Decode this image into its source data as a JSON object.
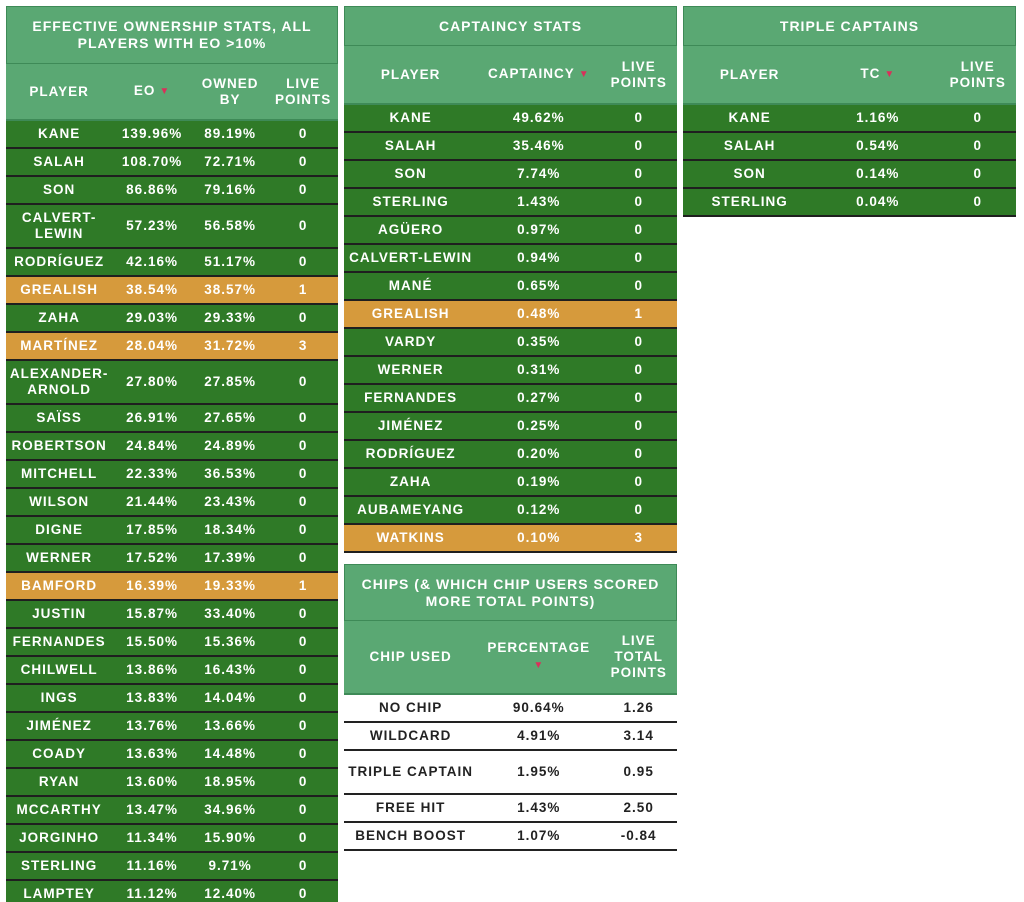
{
  "colors": {
    "header": "#5aa873",
    "row": "#2f7a27",
    "highlight": "#d69a3c",
    "sort_arrow": "#d9305a"
  },
  "eo_table": {
    "title": "EFFECTIVE OWNERSHIP STATS, ALL PLAYERS WITH EO >10%",
    "headers": [
      "PLAYER",
      "EO",
      "OWNED BY",
      "LIVE POINTS"
    ],
    "sorted_column": "EO",
    "rows": [
      {
        "player": "KANE",
        "eo": "139.96%",
        "owned": "89.19%",
        "points": "0",
        "highlight": false
      },
      {
        "player": "SALAH",
        "eo": "108.70%",
        "owned": "72.71%",
        "points": "0",
        "highlight": false
      },
      {
        "player": "SON",
        "eo": "86.86%",
        "owned": "79.16%",
        "points": "0",
        "highlight": false
      },
      {
        "player": "CALVERT-LEWIN",
        "eo": "57.23%",
        "owned": "56.58%",
        "points": "0",
        "highlight": false,
        "tall": true
      },
      {
        "player": "RODRÍGUEZ",
        "eo": "42.16%",
        "owned": "51.17%",
        "points": "0",
        "highlight": false
      },
      {
        "player": "GREALISH",
        "eo": "38.54%",
        "owned": "38.57%",
        "points": "1",
        "highlight": true
      },
      {
        "player": "ZAHA",
        "eo": "29.03%",
        "owned": "29.33%",
        "points": "0",
        "highlight": false
      },
      {
        "player": "MARTÍNEZ",
        "eo": "28.04%",
        "owned": "31.72%",
        "points": "3",
        "highlight": true
      },
      {
        "player": "ALEXANDER-ARNOLD",
        "eo": "27.80%",
        "owned": "27.85%",
        "points": "0",
        "highlight": false,
        "tall": true
      },
      {
        "player": "SAÏSS",
        "eo": "26.91%",
        "owned": "27.65%",
        "points": "0",
        "highlight": false
      },
      {
        "player": "ROBERTSON",
        "eo": "24.84%",
        "owned": "24.89%",
        "points": "0",
        "highlight": false
      },
      {
        "player": "MITCHELL",
        "eo": "22.33%",
        "owned": "36.53%",
        "points": "0",
        "highlight": false
      },
      {
        "player": "WILSON",
        "eo": "21.44%",
        "owned": "23.43%",
        "points": "0",
        "highlight": false
      },
      {
        "player": "DIGNE",
        "eo": "17.85%",
        "owned": "18.34%",
        "points": "0",
        "highlight": false
      },
      {
        "player": "WERNER",
        "eo": "17.52%",
        "owned": "17.39%",
        "points": "0",
        "highlight": false
      },
      {
        "player": "BAMFORD",
        "eo": "16.39%",
        "owned": "19.33%",
        "points": "1",
        "highlight": true
      },
      {
        "player": "JUSTIN",
        "eo": "15.87%",
        "owned": "33.40%",
        "points": "0",
        "highlight": false
      },
      {
        "player": "FERNANDES",
        "eo": "15.50%",
        "owned": "15.36%",
        "points": "0",
        "highlight": false
      },
      {
        "player": "CHILWELL",
        "eo": "13.86%",
        "owned": "16.43%",
        "points": "0",
        "highlight": false
      },
      {
        "player": "INGS",
        "eo": "13.83%",
        "owned": "14.04%",
        "points": "0",
        "highlight": false
      },
      {
        "player": "JIMÉNEZ",
        "eo": "13.76%",
        "owned": "13.66%",
        "points": "0",
        "highlight": false
      },
      {
        "player": "COADY",
        "eo": "13.63%",
        "owned": "14.48%",
        "points": "0",
        "highlight": false
      },
      {
        "player": "RYAN",
        "eo": "13.60%",
        "owned": "18.95%",
        "points": "0",
        "highlight": false
      },
      {
        "player": "MCCARTHY",
        "eo": "13.47%",
        "owned": "34.96%",
        "points": "0",
        "highlight": false
      },
      {
        "player": "JORGINHO",
        "eo": "11.34%",
        "owned": "15.90%",
        "points": "0",
        "highlight": false
      },
      {
        "player": "STERLING",
        "eo": "11.16%",
        "owned": "9.71%",
        "points": "0",
        "highlight": false
      },
      {
        "player": "LAMPTEY",
        "eo": "11.12%",
        "owned": "12.40%",
        "points": "0",
        "highlight": false
      }
    ]
  },
  "captaincy_table": {
    "title": "CAPTAINCY STATS",
    "headers": [
      "PLAYER",
      "CAPTAINCY",
      "LIVE POINTS"
    ],
    "sorted_column": "CAPTAINCY",
    "rows": [
      {
        "player": "KANE",
        "pct": "49.62%",
        "points": "0",
        "highlight": false
      },
      {
        "player": "SALAH",
        "pct": "35.46%",
        "points": "0",
        "highlight": false
      },
      {
        "player": "SON",
        "pct": "7.74%",
        "points": "0",
        "highlight": false
      },
      {
        "player": "STERLING",
        "pct": "1.43%",
        "points": "0",
        "highlight": false
      },
      {
        "player": "AGÜERO",
        "pct": "0.97%",
        "points": "0",
        "highlight": false
      },
      {
        "player": "CALVERT-LEWIN",
        "pct": "0.94%",
        "points": "0",
        "highlight": false
      },
      {
        "player": "MANÉ",
        "pct": "0.65%",
        "points": "0",
        "highlight": false
      },
      {
        "player": "GREALISH",
        "pct": "0.48%",
        "points": "1",
        "highlight": true
      },
      {
        "player": "VARDY",
        "pct": "0.35%",
        "points": "0",
        "highlight": false
      },
      {
        "player": "WERNER",
        "pct": "0.31%",
        "points": "0",
        "highlight": false
      },
      {
        "player": "FERNANDES",
        "pct": "0.27%",
        "points": "0",
        "highlight": false
      },
      {
        "player": "JIMÉNEZ",
        "pct": "0.25%",
        "points": "0",
        "highlight": false
      },
      {
        "player": "RODRÍGUEZ",
        "pct": "0.20%",
        "points": "0",
        "highlight": false
      },
      {
        "player": "ZAHA",
        "pct": "0.19%",
        "points": "0",
        "highlight": false
      },
      {
        "player": "AUBAMEYANG",
        "pct": "0.12%",
        "points": "0",
        "highlight": false
      },
      {
        "player": "WATKINS",
        "pct": "0.10%",
        "points": "3",
        "highlight": true
      }
    ]
  },
  "triple_captain_table": {
    "title": "TRIPLE CAPTAINS",
    "headers": [
      "PLAYER",
      "TC",
      "LIVE POINTS"
    ],
    "sorted_column": "TC",
    "rows": [
      {
        "player": "KANE",
        "pct": "1.16%",
        "points": "0",
        "highlight": false
      },
      {
        "player": "SALAH",
        "pct": "0.54%",
        "points": "0",
        "highlight": false
      },
      {
        "player": "SON",
        "pct": "0.14%",
        "points": "0",
        "highlight": false
      },
      {
        "player": "STERLING",
        "pct": "0.04%",
        "points": "0",
        "highlight": false
      }
    ]
  },
  "chips_table": {
    "title": "CHIPS (& WHICH CHIP USERS SCORED MORE TOTAL POINTS)",
    "headers": [
      "CHIP USED",
      "PERCENTAGE",
      "LIVE TOTAL POINTS"
    ],
    "sorted_column": "PERCENTAGE",
    "rows": [
      {
        "chip": "NO CHIP",
        "pct": "90.64%",
        "points": "1.26"
      },
      {
        "chip": "WILDCARD",
        "pct": "4.91%",
        "points": "3.14"
      },
      {
        "chip": "TRIPLE CAPTAIN",
        "pct": "1.95%",
        "points": "0.95",
        "tall": true
      },
      {
        "chip": "FREE HIT",
        "pct": "1.43%",
        "points": "2.50"
      },
      {
        "chip": "BENCH BOOST",
        "pct": "1.07%",
        "points": "-0.84"
      }
    ]
  },
  "icons": {
    "sort": "sort-desc-icon"
  }
}
